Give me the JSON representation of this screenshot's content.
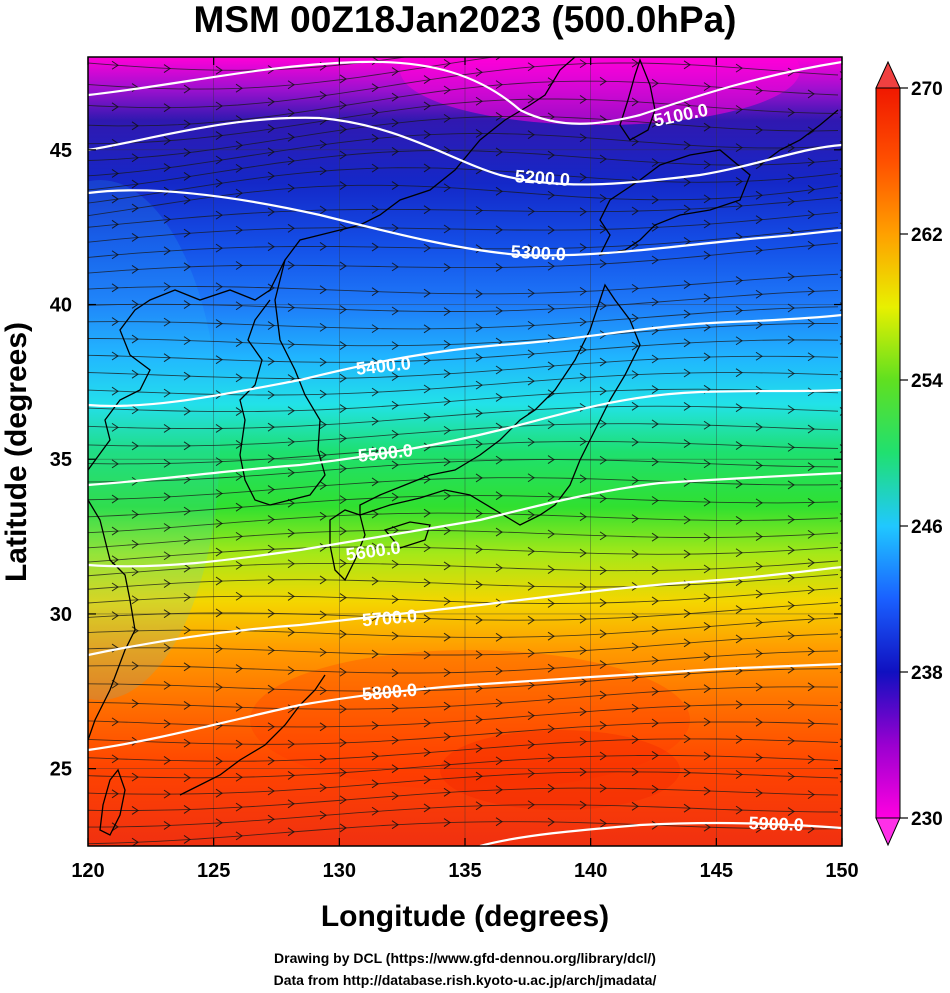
{
  "title": "MSM 00Z18Jan2023 (500.0hPa)",
  "xaxis": {
    "label": "Longitude (degrees)",
    "range": [
      120,
      150
    ],
    "ticks": [
      "120",
      "125",
      "130",
      "135",
      "140",
      "145",
      "150"
    ]
  },
  "yaxis": {
    "label": "Latitude  (degrees)",
    "range": [
      22.5,
      48
    ],
    "ticks": [
      "25",
      "30",
      "35",
      "40",
      "45"
    ]
  },
  "colorbar": {
    "ticks": [
      "230",
      "238",
      "246",
      "254",
      "262",
      "270"
    ],
    "range": [
      230,
      270
    ],
    "colors": [
      "#ff00e0",
      "#c000e0",
      "#6a00c8",
      "#2a10b0",
      "#1010d0",
      "#1040f0",
      "#2080ff",
      "#30c0ff",
      "#20e8e0",
      "#20e080",
      "#30e030",
      "#80e020",
      "#d0f000",
      "#f8d000",
      "#ff9a00",
      "#ff6000",
      "#ff3000",
      "#f01000"
    ]
  },
  "contours": [
    {
      "value": 5100,
      "label": "5100.0"
    },
    {
      "value": 5200,
      "label": "5200.0"
    },
    {
      "value": 5300,
      "label": "5300.0"
    },
    {
      "value": 5400,
      "label": "5400.0"
    },
    {
      "value": 5500,
      "label": "5500.0"
    },
    {
      "value": 5600,
      "label": "5600.0"
    },
    {
      "value": 5700,
      "label": "5700.0"
    },
    {
      "value": 5800,
      "label": "5800.0"
    },
    {
      "value": 5900,
      "label": "5900.0"
    }
  ],
  "credits": {
    "line1": "Drawing by DCL (https://www.gfd-dennou.org/library/dcl/)",
    "line2": "Data from http://database.rish.kyoto-u.ac.jp/arch/jmadata/"
  }
}
